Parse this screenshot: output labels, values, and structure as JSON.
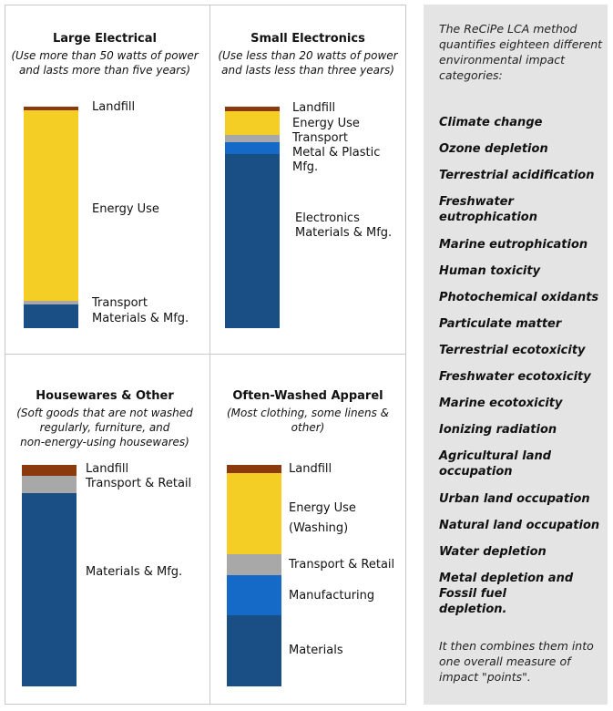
{
  "colors": {
    "landfill": "#8b3a0e",
    "energy": "#f5ce25",
    "transport": "#a8a8a8",
    "materials": "#1a4f86",
    "bright_blue": "#1569c7"
  },
  "panels": {
    "large": {
      "title": "Large Electrical",
      "subtitle_1": "(Use more than 50 watts of power",
      "subtitle_2": "and lasts more than five years)",
      "labels": {
        "landfill": "Landfill",
        "energy": "Energy Use",
        "transport": "Transport",
        "materials": "Materials & Mfg."
      }
    },
    "small": {
      "title": "Small Electronics",
      "subtitle_1": "(Use less than 20 watts of power",
      "subtitle_2": "and lasts less than three years)",
      "labels": {
        "landfill": "Landfill",
        "energy": "Energy Use",
        "transport": "Transport",
        "metal_1": "Metal & Plastic",
        "metal_2": "Mfg.",
        "elec_1": "Electronics",
        "elec_2": "Materials & Mfg."
      }
    },
    "housewares": {
      "title": "Housewares & Other",
      "subtitle_1": "(Soft goods that are not washed",
      "subtitle_2": "regularly, furniture, and",
      "subtitle_3": "non-energy-using housewares)",
      "labels": {
        "landfill": "Landfill",
        "transport": "Transport & Retail",
        "materials": "Materials & Mfg."
      }
    },
    "apparel": {
      "title": "Often-Washed Apparel",
      "subtitle_1": "(Most clothing, some linens &",
      "subtitle_2": "other)",
      "labels": {
        "landfill": "Landfill",
        "energy_1": "Energy Use",
        "energy_2": "(Washing)",
        "transport": "Transport & Retail",
        "manufacturing": "Manufacturing",
        "materials": "Materials"
      }
    }
  },
  "sidebar": {
    "intro": "The ReCiPe LCA method quantifies eighteen different environmental impact categories:",
    "categories": [
      "Climate change",
      "Ozone depletion",
      "Terrestrial acidification",
      "Freshwater eutrophication",
      "Marine eutrophication",
      "Human toxicity",
      "Photochemical oxidants",
      "Particulate matter",
      "Terrestrial ecotoxicity",
      "Freshwater ecotoxicity",
      "Marine ecotoxicity",
      "Ionizing radiation",
      "Agricultural land occupation",
      "Urban land occupation",
      "Natural land occupation",
      "Water depletion",
      "Metal depletion and Fossil fuel depletion."
    ],
    "outro": "It then combines them into one overall measure of impact \"points\"."
  }
}
